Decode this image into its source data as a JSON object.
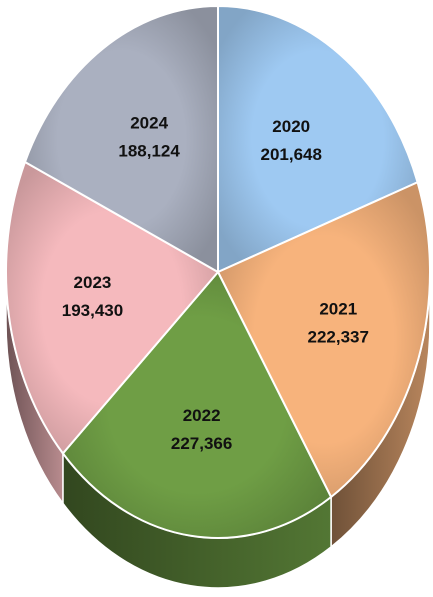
{
  "chart_data": {
    "type": "pie",
    "categories": [
      "2020",
      "2021",
      "2022",
      "2023",
      "2024"
    ],
    "values": [
      201648,
      222337,
      227366,
      193430,
      188124
    ],
    "value_labels": [
      "201,648",
      "222,337",
      "227,366",
      "193,430",
      "188,124"
    ],
    "colors": [
      "#9ec9f2",
      "#f7b37c",
      "#6f9e45",
      "#f5b9bd",
      "#aab0c0"
    ]
  }
}
